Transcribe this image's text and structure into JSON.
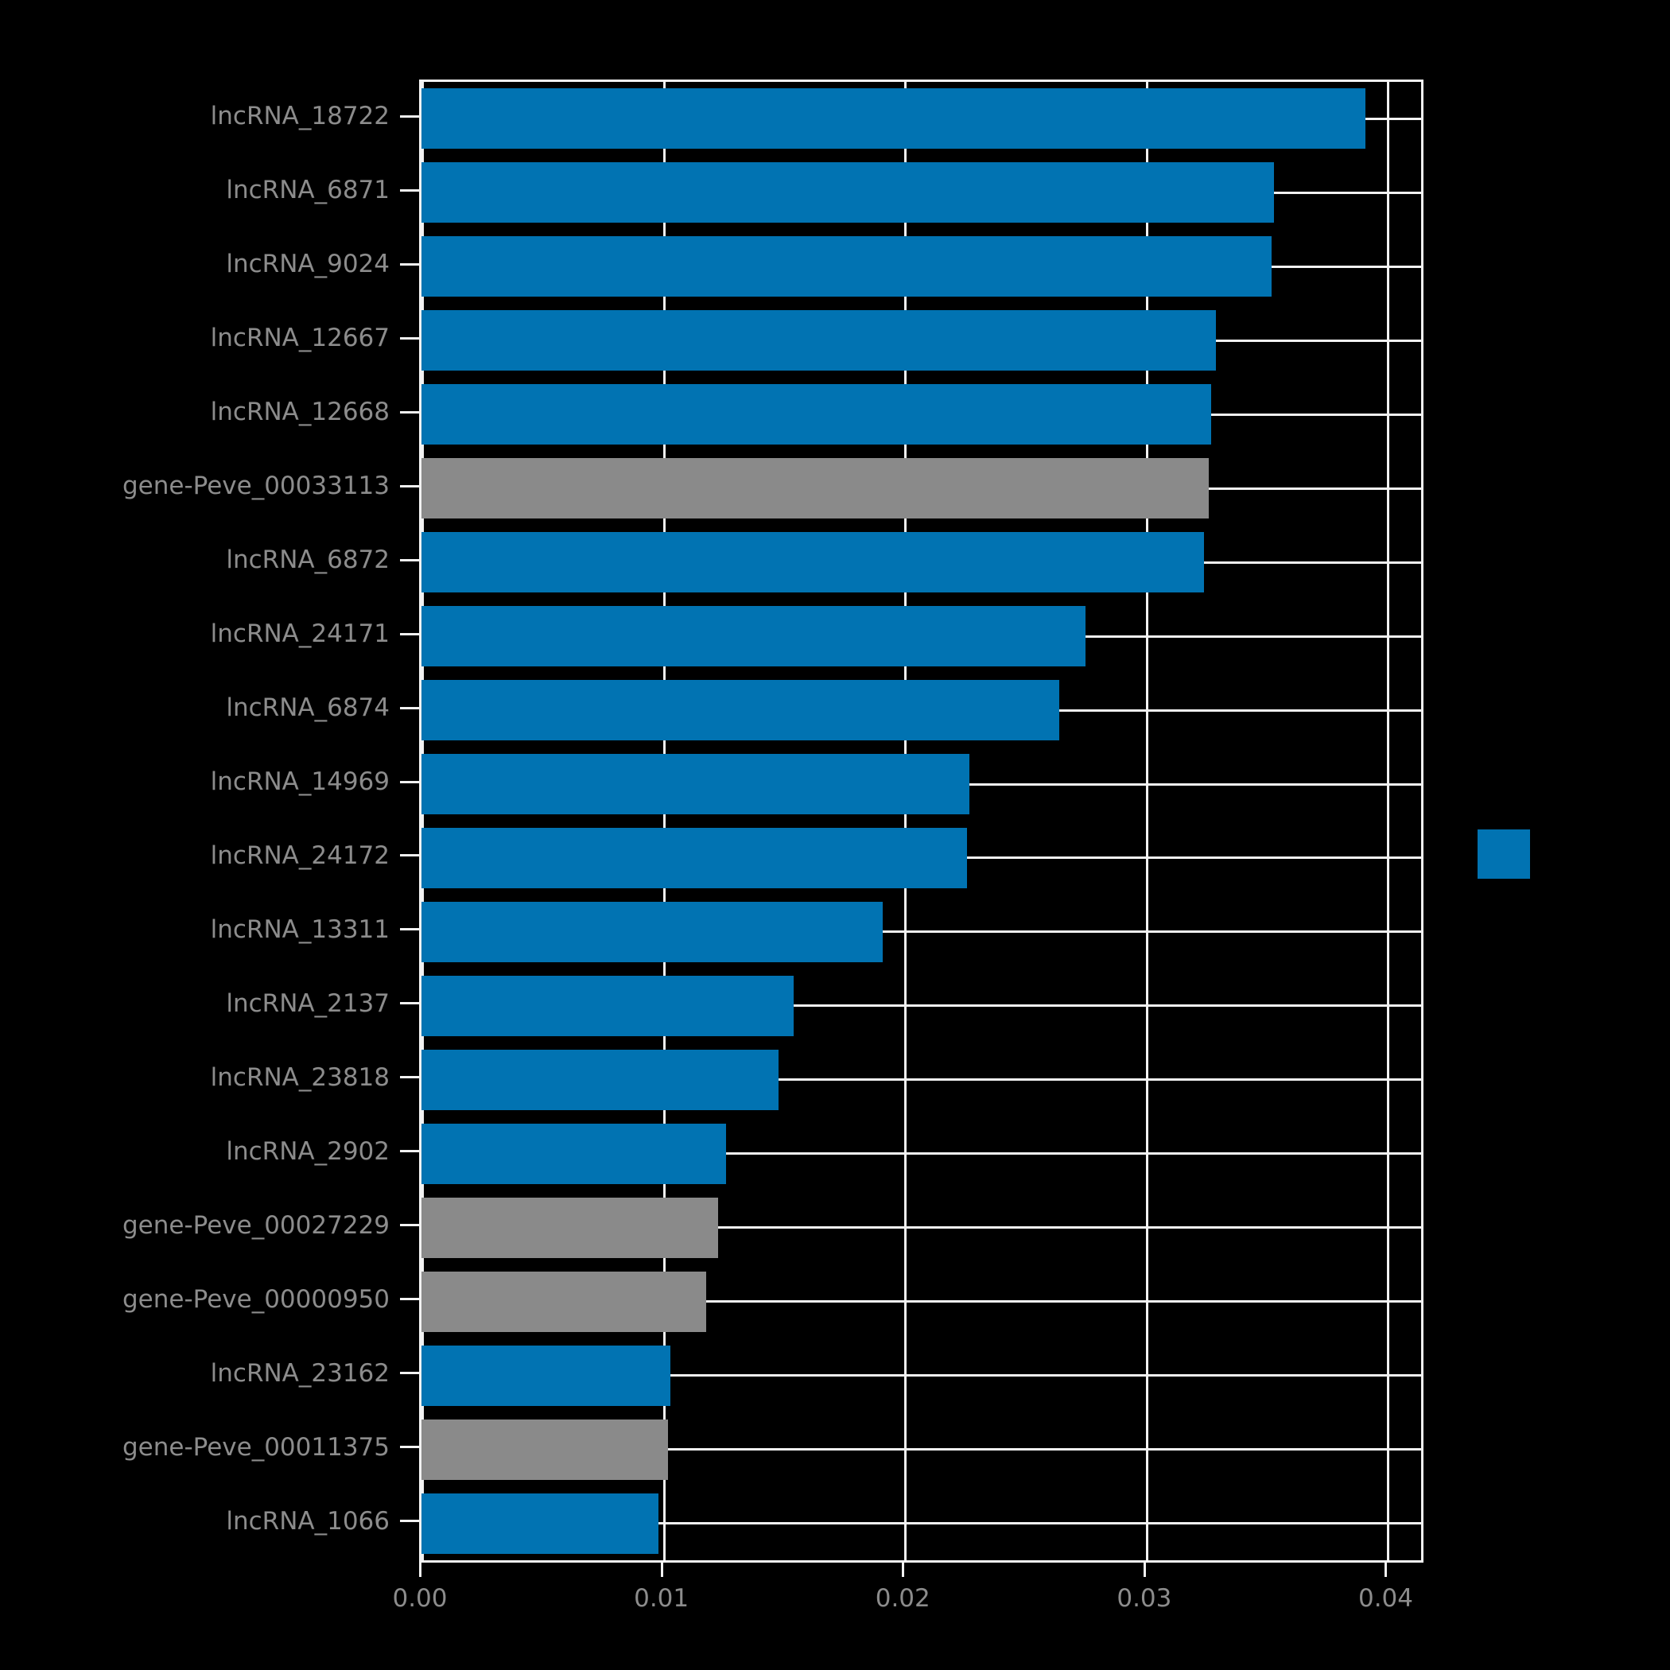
{
  "chart_data": {
    "type": "bar",
    "orientation": "horizontal",
    "title": "",
    "xlabel": "",
    "ylabel": "",
    "categories": [
      "lncRNA_18722",
      "lncRNA_6871",
      "lncRNA_9024",
      "lncRNA_12667",
      "lncRNA_12668",
      "gene-Peve_00033113",
      "lncRNA_6872",
      "lncRNA_24171",
      "lncRNA_6874",
      "lncRNA_14969",
      "lncRNA_24172",
      "lncRNA_13311",
      "lncRNA_2137",
      "lncRNA_23818",
      "lncRNA_2902",
      "gene-Peve_00027229",
      "gene-Peve_00000950",
      "lncRNA_23162",
      "gene-Peve_00011375",
      "lncRNA_1066"
    ],
    "values": [
      0.0391,
      0.0353,
      0.0352,
      0.0329,
      0.0327,
      0.0326,
      0.0324,
      0.0275,
      0.0264,
      0.0227,
      0.0226,
      0.0191,
      0.0154,
      0.0148,
      0.0126,
      0.0123,
      0.0118,
      0.0103,
      0.0102,
      0.0098
    ],
    "bar_colors": [
      "#0173b2",
      "#0173b2",
      "#0173b2",
      "#0173b2",
      "#0173b2",
      "#8a8a8a",
      "#0173b2",
      "#0173b2",
      "#0173b2",
      "#0173b2",
      "#0173b2",
      "#0173b2",
      "#0173b2",
      "#0173b2",
      "#0173b2",
      "#8a8a8a",
      "#8a8a8a",
      "#0173b2",
      "#8a8a8a",
      "#0173b2"
    ],
    "x_ticks": [
      "0.00",
      "0.01",
      "0.02",
      "0.03",
      "0.04"
    ],
    "x_tick_values": [
      0,
      0.01,
      0.02,
      0.03,
      0.04
    ],
    "xlim": [
      0,
      0.0414
    ],
    "grid": true,
    "legend_position": "right",
    "colors": {
      "primary_blue": "#0173b2",
      "secondary_gray": "#8a8a8a",
      "grid": "#f2f2f2",
      "tick_label": "#8c8c8c",
      "background": "#000000"
    },
    "legend": {
      "swatch_color": "#0173b2"
    }
  }
}
